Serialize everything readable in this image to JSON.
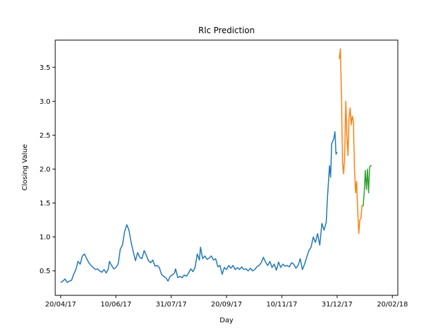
{
  "chart_data": {
    "type": "line",
    "title": "Rlc Prediction",
    "xlabel": "Day",
    "ylabel": "Closing Value",
    "x_ticks": [
      "20/04/17",
      "10/06/17",
      "31/07/17",
      "20/09/17",
      "10/11/17",
      "31/12/17",
      "20/02/18"
    ],
    "y_ticks": [
      "0.5",
      "1.0",
      "1.5",
      "2.0",
      "2.5",
      "3.0",
      "3.5"
    ],
    "x_range": [
      "2017-04-15",
      "2018-02-25"
    ],
    "ylim": [
      0.14,
      3.9
    ],
    "grid": false,
    "legend": "none",
    "series": [
      {
        "color": "#1f77b4",
        "points": [
          [
            "2017-04-20",
            0.33
          ],
          [
            "2017-04-22",
            0.35
          ],
          [
            "2017-04-24",
            0.38
          ],
          [
            "2017-04-26",
            0.33
          ],
          [
            "2017-04-28",
            0.35
          ],
          [
            "2017-04-30",
            0.36
          ],
          [
            "2017-05-02",
            0.45
          ],
          [
            "2017-05-04",
            0.52
          ],
          [
            "2017-05-06",
            0.64
          ],
          [
            "2017-05-08",
            0.6
          ],
          [
            "2017-05-10",
            0.72
          ],
          [
            "2017-05-12",
            0.75
          ],
          [
            "2017-05-14",
            0.68
          ],
          [
            "2017-05-16",
            0.62
          ],
          [
            "2017-05-18",
            0.58
          ],
          [
            "2017-05-20",
            0.55
          ],
          [
            "2017-05-22",
            0.52
          ],
          [
            "2017-05-24",
            0.53
          ],
          [
            "2017-05-26",
            0.5
          ],
          [
            "2017-05-28",
            0.48
          ],
          [
            "2017-05-30",
            0.52
          ],
          [
            "2017-06-01",
            0.47
          ],
          [
            "2017-06-03",
            0.53
          ],
          [
            "2017-06-04",
            0.64
          ],
          [
            "2017-06-06",
            0.58
          ],
          [
            "2017-06-08",
            0.53
          ],
          [
            "2017-06-10",
            0.55
          ],
          [
            "2017-06-12",
            0.6
          ],
          [
            "2017-06-14",
            0.82
          ],
          [
            "2017-06-16",
            0.88
          ],
          [
            "2017-06-18",
            1.08
          ],
          [
            "2017-06-20",
            1.18
          ],
          [
            "2017-06-22",
            1.1
          ],
          [
            "2017-06-24",
            0.92
          ],
          [
            "2017-06-26",
            0.78
          ],
          [
            "2017-06-28",
            0.65
          ],
          [
            "2017-06-30",
            0.77
          ],
          [
            "2017-07-02",
            0.7
          ],
          [
            "2017-07-04",
            0.68
          ],
          [
            "2017-07-06",
            0.8
          ],
          [
            "2017-07-08",
            0.73
          ],
          [
            "2017-07-10",
            0.65
          ],
          [
            "2017-07-12",
            0.62
          ],
          [
            "2017-07-14",
            0.66
          ],
          [
            "2017-07-16",
            0.57
          ],
          [
            "2017-07-18",
            0.58
          ],
          [
            "2017-07-20",
            0.55
          ],
          [
            "2017-07-22",
            0.45
          ],
          [
            "2017-07-24",
            0.42
          ],
          [
            "2017-07-26",
            0.4
          ],
          [
            "2017-07-28",
            0.35
          ],
          [
            "2017-07-30",
            0.42
          ],
          [
            "2017-08-01",
            0.44
          ],
          [
            "2017-08-03",
            0.47
          ],
          [
            "2017-08-04",
            0.53
          ],
          [
            "2017-08-06",
            0.4
          ],
          [
            "2017-08-08",
            0.42
          ],
          [
            "2017-08-10",
            0.4
          ],
          [
            "2017-08-12",
            0.44
          ],
          [
            "2017-08-14",
            0.42
          ],
          [
            "2017-08-16",
            0.47
          ],
          [
            "2017-08-18",
            0.53
          ],
          [
            "2017-08-20",
            0.49
          ],
          [
            "2017-08-22",
            0.55
          ],
          [
            "2017-08-24",
            0.75
          ],
          [
            "2017-08-26",
            0.66
          ],
          [
            "2017-08-27",
            0.85
          ],
          [
            "2017-08-29",
            0.68
          ],
          [
            "2017-08-31",
            0.72
          ],
          [
            "2017-09-02",
            0.67
          ],
          [
            "2017-09-04",
            0.69
          ],
          [
            "2017-09-06",
            0.72
          ],
          [
            "2017-09-08",
            0.66
          ],
          [
            "2017-09-10",
            0.68
          ],
          [
            "2017-09-12",
            0.56
          ],
          [
            "2017-09-14",
            0.58
          ],
          [
            "2017-09-16",
            0.45
          ],
          [
            "2017-09-18",
            0.55
          ],
          [
            "2017-09-20",
            0.52
          ],
          [
            "2017-09-22",
            0.58
          ],
          [
            "2017-09-24",
            0.54
          ],
          [
            "2017-09-26",
            0.58
          ],
          [
            "2017-09-28",
            0.52
          ],
          [
            "2017-09-30",
            0.55
          ],
          [
            "2017-10-02",
            0.52
          ],
          [
            "2017-10-04",
            0.56
          ],
          [
            "2017-10-06",
            0.52
          ],
          [
            "2017-10-08",
            0.53
          ],
          [
            "2017-10-10",
            0.5
          ],
          [
            "2017-10-12",
            0.54
          ],
          [
            "2017-10-14",
            0.5
          ],
          [
            "2017-10-16",
            0.52
          ],
          [
            "2017-10-18",
            0.56
          ],
          [
            "2017-10-20",
            0.58
          ],
          [
            "2017-10-22",
            0.62
          ],
          [
            "2017-10-24",
            0.7
          ],
          [
            "2017-10-26",
            0.63
          ],
          [
            "2017-10-28",
            0.58
          ],
          [
            "2017-10-30",
            0.64
          ],
          [
            "2017-11-01",
            0.55
          ],
          [
            "2017-11-03",
            0.6
          ],
          [
            "2017-11-05",
            0.51
          ],
          [
            "2017-11-07",
            0.63
          ],
          [
            "2017-11-09",
            0.55
          ],
          [
            "2017-11-11",
            0.6
          ],
          [
            "2017-11-13",
            0.57
          ],
          [
            "2017-11-15",
            0.58
          ],
          [
            "2017-11-17",
            0.56
          ],
          [
            "2017-11-19",
            0.62
          ],
          [
            "2017-11-21",
            0.6
          ],
          [
            "2017-11-23",
            0.54
          ],
          [
            "2017-11-25",
            0.58
          ],
          [
            "2017-11-27",
            0.68
          ],
          [
            "2017-11-29",
            0.52
          ],
          [
            "2017-12-01",
            0.6
          ],
          [
            "2017-12-03",
            0.7
          ],
          [
            "2017-12-05",
            0.8
          ],
          [
            "2017-12-07",
            0.85
          ],
          [
            "2017-12-09",
            1.0
          ],
          [
            "2017-12-11",
            0.92
          ],
          [
            "2017-12-13",
            1.05
          ],
          [
            "2017-12-15",
            0.88
          ],
          [
            "2017-12-17",
            1.2
          ],
          [
            "2017-12-19",
            1.1
          ],
          [
            "2017-12-21",
            1.22
          ],
          [
            "2017-12-22",
            1.55
          ],
          [
            "2017-12-24",
            2.05
          ],
          [
            "2017-12-25",
            1.88
          ],
          [
            "2017-12-26",
            2.37
          ],
          [
            "2017-12-28",
            2.45
          ],
          [
            "2017-12-29",
            2.55
          ],
          [
            "2017-12-30",
            2.22
          ],
          [
            "2017-12-31",
            2.25
          ]
        ]
      },
      {
        "color": "#ff7f0e",
        "points": [
          [
            "2018-01-02",
            3.62
          ],
          [
            "2018-01-03",
            3.77
          ],
          [
            "2018-01-04",
            3.1
          ],
          [
            "2018-01-05",
            2.1
          ],
          [
            "2018-01-06",
            1.93
          ],
          [
            "2018-01-07",
            2.2
          ],
          [
            "2018-01-08",
            3.0
          ],
          [
            "2018-01-09",
            2.5
          ],
          [
            "2018-01-10",
            2.2
          ],
          [
            "2018-01-11",
            2.75
          ],
          [
            "2018-01-12",
            2.9
          ],
          [
            "2018-01-13",
            2.65
          ],
          [
            "2018-01-14",
            2.78
          ],
          [
            "2018-01-15",
            2.7
          ],
          [
            "2018-01-16",
            2.05
          ],
          [
            "2018-01-17",
            1.65
          ],
          [
            "2018-01-18",
            1.82
          ],
          [
            "2018-01-19",
            1.4
          ],
          [
            "2018-01-20",
            1.05
          ],
          [
            "2018-01-21",
            1.25
          ],
          [
            "2018-01-22",
            1.28
          ],
          [
            "2018-01-23",
            1.47
          ]
        ]
      },
      {
        "color": "#2ca02c",
        "points": [
          [
            "2018-01-24",
            1.45
          ],
          [
            "2018-01-25",
            1.65
          ],
          [
            "2018-01-26",
            1.98
          ],
          [
            "2018-01-27",
            1.7
          ],
          [
            "2018-01-28",
            2.0
          ],
          [
            "2018-01-29",
            1.65
          ],
          [
            "2018-01-30",
            2.03
          ],
          [
            "2018-01-31",
            2.05
          ],
          [
            "2018-02-01",
            2.05
          ]
        ]
      }
    ]
  }
}
